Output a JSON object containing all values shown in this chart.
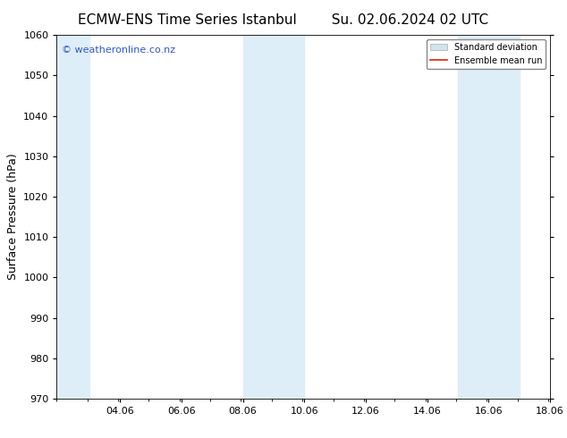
{
  "title_left": "ECMW-ENS Time Series Istanbul",
  "title_right": "Su. 02.06.2024 02 UTC",
  "ylabel": "Surface Pressure (hPa)",
  "ylim": [
    970,
    1060
  ],
  "yticks": [
    970,
    980,
    990,
    1000,
    1010,
    1020,
    1030,
    1040,
    1050,
    1060
  ],
  "xlim_start": 2.0,
  "xlim_end": 18.06,
  "xtick_labels": [
    "04.06",
    "06.06",
    "08.06",
    "10.06",
    "12.06",
    "14.06",
    "16.06",
    "18.06"
  ],
  "xtick_positions": [
    4.06,
    6.06,
    8.06,
    10.06,
    12.06,
    14.06,
    16.06,
    18.06
  ],
  "shade_bands": [
    {
      "x_start": 2.0,
      "x_end": 3.06,
      "color": "#ddeef8"
    },
    {
      "x_start": 8.06,
      "x_end": 9.06,
      "color": "#ddeef8"
    },
    {
      "x_start": 9.06,
      "x_end": 10.06,
      "color": "#ddeef8"
    },
    {
      "x_start": 15.06,
      "x_end": 16.06,
      "color": "#ddeef8"
    },
    {
      "x_start": 16.06,
      "x_end": 17.06,
      "color": "#ddeef8"
    }
  ],
  "watermark_text": "© weatheronline.co.nz",
  "watermark_color": "#3355cc",
  "legend_std_color": "#d0e4f0",
  "legend_std_edge": "#aaaaaa",
  "legend_mean_color": "#dd2200",
  "background_color": "#ffffff",
  "plot_bg_color": "#ffffff",
  "title_fontsize": 11,
  "label_fontsize": 9,
  "tick_fontsize": 8,
  "watermark_fontsize": 8
}
